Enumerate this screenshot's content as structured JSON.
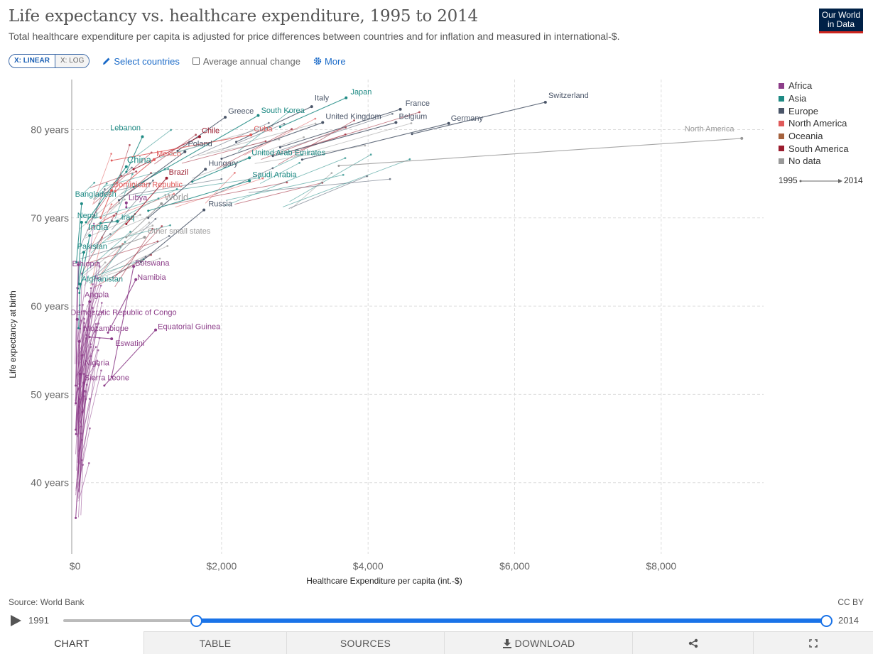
{
  "header": {
    "title": "Life expectancy vs. healthcare expenditure, 1995 to 2014",
    "subtitle": "Total healthcare expenditure per capita is adjusted for price differences between countries and for inflation and measured in international-$.",
    "logo_line1": "Our World",
    "logo_line2": "in Data"
  },
  "controls": {
    "linear_label": "X: LINEAR",
    "log_label": "X: LOG",
    "select_countries": "Select countries",
    "avg_change": "Average annual change",
    "more": "More"
  },
  "colors": {
    "Africa": "#8c3d89",
    "Asia": "#1e8a84",
    "Europe": "#4a5568",
    "North America": "#e05a5a",
    "Oceania": "#a5623d",
    "South America": "#9b1c2e",
    "No data": "#999999",
    "accent": "#1a73e8"
  },
  "legend": {
    "items": [
      "Africa",
      "Asia",
      "Europe",
      "North America",
      "Oceania",
      "South America",
      "No data"
    ],
    "start_year": "1995",
    "end_year": "2014"
  },
  "chart_data": {
    "type": "scatter",
    "subtype": "connected-arrows",
    "xlabel": "Healthcare Expenditure per capita (int.-$)",
    "ylabel": "Life expectancy at birth",
    "xlim": [
      -100,
      9400
    ],
    "ylim": [
      32,
      86
    ],
    "xticks": [
      {
        "v": 0,
        "label": "$0"
      },
      {
        "v": 2000,
        "label": "$2,000"
      },
      {
        "v": 4000,
        "label": "$4,000"
      },
      {
        "v": 6000,
        "label": "$6,000"
      },
      {
        "v": 8000,
        "label": "$8,000"
      }
    ],
    "yticks": [
      {
        "v": 40,
        "label": "40 years"
      },
      {
        "v": 50,
        "label": "50 years"
      },
      {
        "v": 60,
        "label": "60 years"
      },
      {
        "v": 70,
        "label": "70 years"
      },
      {
        "v": 80,
        "label": "80 years"
      }
    ],
    "series": [
      {
        "name": "Switzerland",
        "region": "Europe",
        "x0": 4600,
        "y0": 79.5,
        "x1": 6420,
        "y1": 83.1,
        "lx": 6460,
        "ly": 83.6
      },
      {
        "name": "Japan",
        "region": "Asia",
        "x0": 2800,
        "y0": 80.3,
        "x1": 3700,
        "y1": 83.6,
        "lx": 3760,
        "ly": 84.0
      },
      {
        "name": "Italy",
        "region": "Europe",
        "x0": 2200,
        "y0": 78.6,
        "x1": 3230,
        "y1": 82.6,
        "lx": 3270,
        "ly": 83.3
      },
      {
        "name": "France",
        "region": "Europe",
        "x0": 2800,
        "y0": 78.0,
        "x1": 4440,
        "y1": 82.3,
        "lx": 4510,
        "ly": 82.7
      },
      {
        "name": "Greece",
        "region": "Europe",
        "x0": 1400,
        "y0": 77.6,
        "x1": 2050,
        "y1": 81.4,
        "lx": 2090,
        "ly": 81.8
      },
      {
        "name": "South Korea",
        "region": "Asia",
        "x0": 800,
        "y0": 73.5,
        "x1": 2500,
        "y1": 81.6,
        "lx": 2540,
        "ly": 81.9
      },
      {
        "name": "United Kingdom",
        "region": "Europe",
        "x0": 2000,
        "y0": 76.7,
        "x1": 3380,
        "y1": 80.8,
        "lx": 3420,
        "ly": 81.2
      },
      {
        "name": "Belgium",
        "region": "Europe",
        "x0": 2700,
        "y0": 77.0,
        "x1": 4380,
        "y1": 80.8,
        "lx": 4420,
        "ly": 81.2
      },
      {
        "name": "Germany",
        "region": "Europe",
        "x0": 3100,
        "y0": 76.6,
        "x1": 5100,
        "y1": 80.7,
        "lx": 5130,
        "ly": 81.0
      },
      {
        "name": "Lebanon",
        "region": "Asia",
        "x0": 700,
        "y0": 75.2,
        "x1": 920,
        "y1": 79.2,
        "lx": 480,
        "ly": 79.9
      },
      {
        "name": "Chile",
        "region": "South America",
        "x0": 800,
        "y0": 75.5,
        "x1": 1700,
        "y1": 79.2,
        "lx": 1730,
        "ly": 79.6
      },
      {
        "name": "Cuba",
        "region": "North America",
        "x0": 500,
        "y0": 76.5,
        "x1": 2400,
        "y1": 79.4,
        "lx": 2440,
        "ly": 79.8
      },
      {
        "name": "Poland",
        "region": "Europe",
        "x0": 600,
        "y0": 72.0,
        "x1": 1500,
        "y1": 77.5,
        "lx": 1540,
        "ly": 78.1
      },
      {
        "name": "United Arab Emirates",
        "region": "Asia",
        "x0": 1600,
        "y0": 74.1,
        "x1": 2380,
        "y1": 76.8,
        "lx": 2410,
        "ly": 77.1
      },
      {
        "name": "Mexico",
        "region": "North America",
        "x0": 550,
        "y0": 73.0,
        "x1": 1080,
        "y1": 76.6,
        "lx": 1110,
        "ly": 77.0
      },
      {
        "name": "China",
        "region": "Asia",
        "x0": 150,
        "y0": 69.5,
        "x1": 700,
        "y1": 75.8,
        "lx": 710,
        "ly": 76.2
      },
      {
        "name": "Hungary",
        "region": "Europe",
        "x0": 1000,
        "y0": 70.0,
        "x1": 1780,
        "y1": 75.5,
        "lx": 1820,
        "ly": 75.9
      },
      {
        "name": "Brazil",
        "region": "South America",
        "x0": 700,
        "y0": 69.3,
        "x1": 1250,
        "y1": 74.5,
        "lx": 1280,
        "ly": 74.9
      },
      {
        "name": "North America",
        "region": "No data",
        "x0": 3600,
        "y0": 75.9,
        "x1": 9100,
        "y1": 79.0,
        "lx": 8320,
        "ly": 79.8
      },
      {
        "name": "Dominican Republic",
        "region": "North America",
        "x0": 350,
        "y0": 70.0,
        "x1": 500,
        "y1": 73.1,
        "lx": 520,
        "ly": 73.5
      },
      {
        "name": "Saudi Arabia",
        "region": "Asia",
        "x0": 1000,
        "y0": 70.8,
        "x1": 2380,
        "y1": 74.2,
        "lx": 2420,
        "ly": 74.6
      },
      {
        "name": "Bangladesh",
        "region": "Asia",
        "x0": 20,
        "y0": 65.0,
        "x1": 90,
        "y1": 71.6,
        "lx": 0,
        "ly": 72.4
      },
      {
        "name": "Libya",
        "region": "Africa",
        "x0": 700,
        "y0": 71.2,
        "x1": 700,
        "y1": 71.7,
        "lx": 730,
        "ly": 72.0
      },
      {
        "name": "World",
        "region": "No data",
        "x0": 700,
        "y0": 67.8,
        "x1": 1180,
        "y1": 71.6,
        "lx": 1220,
        "ly": 72.0
      },
      {
        "name": "Russia",
        "region": "Europe",
        "x0": 900,
        "y0": 65.0,
        "x1": 1760,
        "y1": 70.9,
        "lx": 1820,
        "ly": 71.3
      },
      {
        "name": "Nepal",
        "region": "Asia",
        "x0": 40,
        "y0": 62.0,
        "x1": 90,
        "y1": 69.5,
        "lx": 30,
        "ly": 70.0
      },
      {
        "name": "Iraq",
        "region": "Asia",
        "x0": 350,
        "y0": 69.4,
        "x1": 580,
        "y1": 69.6,
        "lx": 630,
        "ly": 69.8
      },
      {
        "name": "India",
        "region": "Asia",
        "x0": 60,
        "y0": 61.5,
        "x1": 200,
        "y1": 68.0,
        "lx": 180,
        "ly": 68.6
      },
      {
        "name": "Other small states",
        "region": "No data",
        "x0": 500,
        "y0": 66.5,
        "x1": 950,
        "y1": 67.8,
        "lx": 990,
        "ly": 68.2
      },
      {
        "name": "Pakistan",
        "region": "Asia",
        "x0": 50,
        "y0": 62.5,
        "x1": 120,
        "y1": 66.1,
        "lx": 30,
        "ly": 66.5
      },
      {
        "name": "Botswana",
        "region": "Africa",
        "x0": 500,
        "y0": 52.0,
        "x1": 800,
        "y1": 64.5,
        "lx": 820,
        "ly": 64.6
      },
      {
        "name": "Ethiopia",
        "region": "Africa",
        "x0": 10,
        "y0": 51.0,
        "x1": 45,
        "y1": 64.7,
        "lx": -40,
        "ly": 64.5
      },
      {
        "name": "Afghanistan",
        "region": "Asia",
        "x0": 50,
        "y0": 57.5,
        "x1": 70,
        "y1": 62.5,
        "lx": 90,
        "ly": 62.8
      },
      {
        "name": "Namibia",
        "region": "Africa",
        "x0": 450,
        "y0": 57.0,
        "x1": 830,
        "y1": 63.0,
        "lx": 850,
        "ly": 63.0
      },
      {
        "name": "Angola",
        "region": "Africa",
        "x0": 100,
        "y0": 48.0,
        "x1": 200,
        "y1": 60.5,
        "lx": 130,
        "ly": 61.0
      },
      {
        "name": "Democratic Republic of Congo",
        "region": "Africa",
        "x0": 10,
        "y0": 49.0,
        "x1": 30,
        "y1": 58.5,
        "lx": -60,
        "ly": 59.0
      },
      {
        "name": "Mozambique",
        "region": "Africa",
        "x0": 10,
        "y0": 46.0,
        "x1": 60,
        "y1": 56.0,
        "lx": 120,
        "ly": 57.2
      },
      {
        "name": "Equatorial Guinea",
        "region": "Africa",
        "x0": 400,
        "y0": 51.0,
        "x1": 1100,
        "y1": 57.3,
        "lx": 1130,
        "ly": 57.4
      },
      {
        "name": "Eswatini",
        "region": "Africa",
        "x0": 200,
        "y0": 56.5,
        "x1": 500,
        "y1": 56.3,
        "lx": 550,
        "ly": 55.5
      },
      {
        "name": "Nigeria",
        "region": "Africa",
        "x0": 15,
        "y0": 45.5,
        "x1": 70,
        "y1": 52.3,
        "lx": 130,
        "ly": 53.3
      },
      {
        "name": "Sierra Leone",
        "region": "Africa",
        "x0": 10,
        "y0": 36.0,
        "x1": 120,
        "y1": 51.3,
        "lx": 130,
        "ly": 51.6
      }
    ]
  },
  "footer": {
    "source": "Source: World Bank",
    "license": "CC BY",
    "timeline_start": "1991",
    "timeline_end": "2014"
  },
  "tabs": [
    "CHART",
    "TABLE",
    "SOURCES",
    "DOWNLOAD"
  ]
}
